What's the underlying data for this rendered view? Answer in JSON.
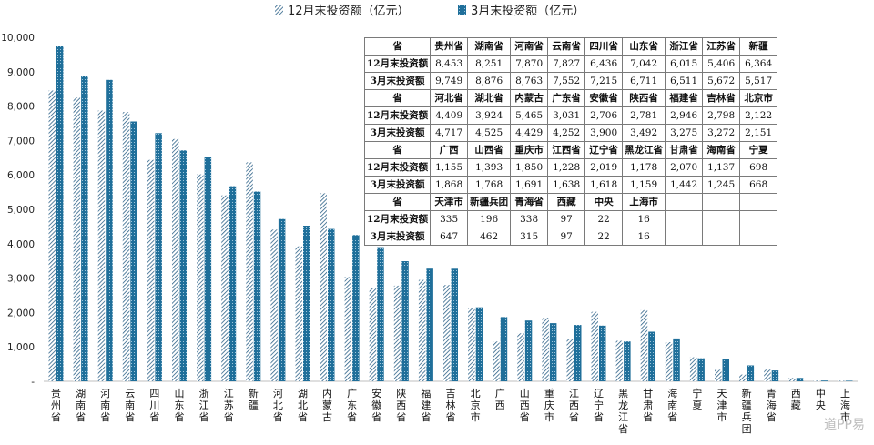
{
  "legend": {
    "dec_label": "12月末投资额（亿元）",
    "mar_label": "3月末投资额（亿元）"
  },
  "colors": {
    "mar": "#1f6f9a",
    "dec": "#2a5f86"
  },
  "chart_data": {
    "type": "bar",
    "ylim": [
      0,
      10000
    ],
    "yticks": [
      "-",
      "1,000",
      "2,000",
      "3,000",
      "4,000",
      "5,000",
      "6,000",
      "7,000",
      "8,000",
      "9,000",
      "10,000"
    ],
    "categories": [
      "贵州省",
      "湖南省",
      "河南省",
      "云南省",
      "四川省",
      "山东省",
      "浙江省",
      "江苏省",
      "新疆",
      "河北省",
      "湖北省",
      "内蒙古",
      "广东省",
      "安徽省",
      "陕西省",
      "福建省",
      "吉林省",
      "北京市",
      "广西",
      "山西省",
      "重庆市",
      "江西省",
      "辽宁省",
      "黑龙江省",
      "甘肃省",
      "海南省",
      "宁夏",
      "天津市",
      "新疆兵团",
      "青海省",
      "西藏",
      "中央",
      "上海市"
    ],
    "series": [
      {
        "name": "12月末投资额（亿元）",
        "values": [
          8453,
          8251,
          7870,
          7827,
          6436,
          7042,
          6015,
          5406,
          6364,
          4409,
          3924,
          5465,
          3031,
          2706,
          2781,
          2946,
          2798,
          2122,
          1155,
          1393,
          1850,
          1228,
          2019,
          1178,
          2070,
          1137,
          698,
          335,
          196,
          338,
          97,
          22,
          16
        ]
      },
      {
        "name": "3月末投资额（亿元）",
        "values": [
          9749,
          8876,
          8763,
          7552,
          7215,
          6711,
          6511,
          5672,
          5517,
          4717,
          4525,
          4429,
          4252,
          3900,
          3492,
          3275,
          3272,
          2151,
          1868,
          1768,
          1691,
          1638,
          1618,
          1159,
          1442,
          1245,
          668,
          647,
          462,
          315,
          97,
          22,
          16
        ]
      }
    ]
  },
  "table": {
    "blocks": [
      {
        "header": [
          "省",
          "贵州省",
          "湖南省",
          "河南省",
          "云南省",
          "四川省",
          "山东省",
          "浙江省",
          "江苏省",
          "新疆"
        ],
        "dec": [
          "12月末投资额",
          "8,453",
          "8,251",
          "7,870",
          "7,827",
          "6,436",
          "7,042",
          "6,015",
          "5,406",
          "6,364"
        ],
        "mar": [
          "3月末投资额",
          "9,749",
          "8,876",
          "8,763",
          "7,552",
          "7,215",
          "6,711",
          "6,511",
          "5,672",
          "5,517"
        ]
      },
      {
        "header": [
          "省",
          "河北省",
          "湖北省",
          "内蒙古",
          "广东省",
          "安徽省",
          "陕西省",
          "福建省",
          "吉林省",
          "北京市"
        ],
        "dec": [
          "12月末投资额",
          "4,409",
          "3,924",
          "5,465",
          "3,031",
          "2,706",
          "2,781",
          "2,946",
          "2,798",
          "2,122"
        ],
        "mar": [
          "3月末投资额",
          "4,717",
          "4,525",
          "4,429",
          "4,252",
          "3,900",
          "3,492",
          "3,275",
          "3,272",
          "2,151"
        ]
      },
      {
        "header": [
          "省",
          "广西",
          "山西省",
          "重庆市",
          "江西省",
          "辽宁省",
          "黑龙江省",
          "甘肃省",
          "海南省",
          "宁夏"
        ],
        "dec": [
          "12月末投资额",
          "1,155",
          "1,393",
          "1,850",
          "1,228",
          "2,019",
          "1,178",
          "2,070",
          "1,137",
          "698"
        ],
        "mar": [
          "3月末投资额",
          "1,868",
          "1,768",
          "1,691",
          "1,638",
          "1,618",
          "1,159",
          "1,442",
          "1,245",
          "668"
        ]
      },
      {
        "header": [
          "省",
          "天津市",
          "新疆兵团",
          "青海省",
          "西藏",
          "中央",
          "上海市",
          "",
          "",
          ""
        ],
        "dec": [
          "12月末投资额",
          "335",
          "196",
          "338",
          "97",
          "22",
          "16",
          "",
          "",
          ""
        ],
        "mar": [
          "3月末投资额",
          "647",
          "462",
          "315",
          "97",
          "22",
          "16",
          "",
          "",
          ""
        ]
      }
    ]
  },
  "watermark": "道PP易"
}
